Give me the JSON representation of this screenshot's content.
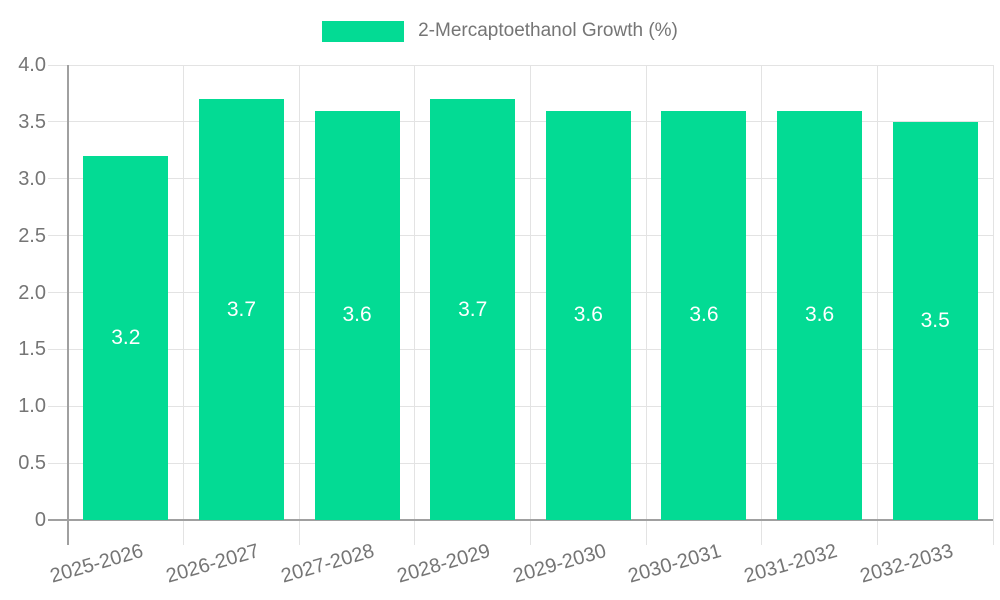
{
  "legend": {
    "label": "2-Mercaptoethanol Growth (%)"
  },
  "chart_data": {
    "type": "bar",
    "title": "",
    "legend_position": "top",
    "legend_entries": [
      "2-Mercaptoethanol Growth (%)"
    ],
    "categories": [
      "2025-2026",
      "2026-2027",
      "2027-2028",
      "2028-2029",
      "2029-2030",
      "2030-2031",
      "2031-2032",
      "2032-2033"
    ],
    "series": [
      {
        "name": "2-Mercaptoethanol Growth (%)",
        "values": [
          3.2,
          3.7,
          3.6,
          3.7,
          3.6,
          3.6,
          3.6,
          3.5
        ]
      }
    ],
    "bar_value_labels": [
      "3.2",
      "3.7",
      "3.6",
      "3.7",
      "3.6",
      "3.6",
      "3.6",
      "3.5"
    ],
    "y_ticks": [
      "4.0",
      "3.5",
      "3.0",
      "2.5",
      "2.0",
      "1.5",
      "1.0",
      "0.5",
      "0"
    ],
    "ylim": [
      0,
      4
    ],
    "xlabel": "",
    "ylabel": "",
    "grid": true,
    "colors": {
      "bar": "#03DB94",
      "bar_label": "#FFFFFF",
      "axis_text": "#757575",
      "grid_line": "#E3E3E3",
      "axis_line": "#A0A0A0"
    }
  }
}
